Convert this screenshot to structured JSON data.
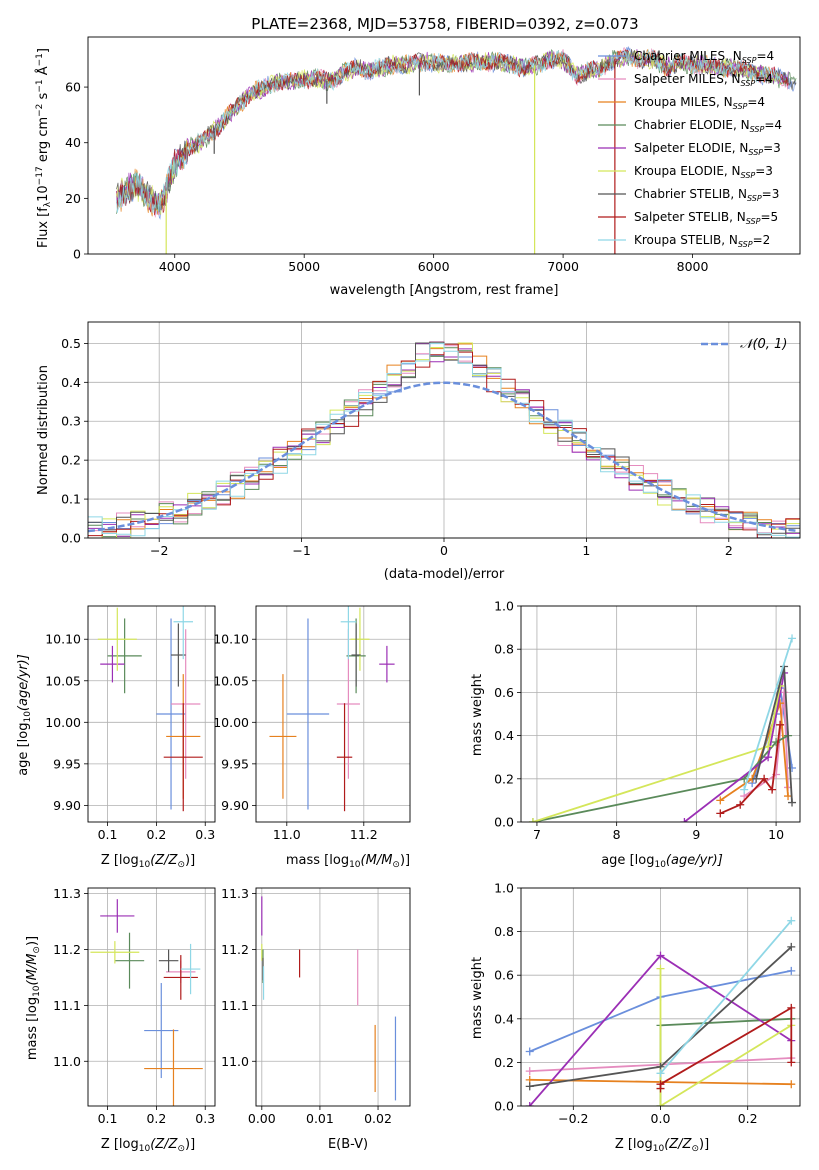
{
  "title": "PLATE=2368, MJD=53758, FIBERID=0392, z=0.073",
  "legend": [
    {
      "name": "Chabrier MILES, N$_{SSP}$=4",
      "label_main": "Chabrier MILES, N",
      "label_sub": "SSP",
      "label_tail": "=4",
      "color": "#6a8fdc"
    },
    {
      "name": "Salpeter MILES, N$_{SSP}$=4",
      "label_main": "Salpeter MILES, N",
      "label_sub": "SSP",
      "label_tail": "=4",
      "color": "#e58cbf"
    },
    {
      "name": "Kroupa MILES, N$_{SSP}$=4",
      "label_main": "Kroupa MILES, N",
      "label_sub": "SSP",
      "label_tail": "=4",
      "color": "#e6811f"
    },
    {
      "name": "Chabrier ELODIE, N$_{SSP}$=4",
      "label_main": "Chabrier ELODIE, N",
      "label_sub": "SSP",
      "label_tail": "=4",
      "color": "#5a8a5a"
    },
    {
      "name": "Salpeter ELODIE, N$_{SSP}$=3",
      "label_main": "Salpeter ELODIE, N",
      "label_sub": "SSP",
      "label_tail": "=3",
      "color": "#9b2fb5"
    },
    {
      "name": "Kroupa ELODIE, N$_{SSP}$=3",
      "label_main": "Kroupa ELODIE, N",
      "label_sub": "SSP",
      "label_tail": "=3",
      "color": "#d4e65a"
    },
    {
      "name": "Chabrier STELIB, N$_{SSP}$=3",
      "label_main": "Chabrier STELIB, N",
      "label_sub": "SSP",
      "label_tail": "=3",
      "color": "#555555"
    },
    {
      "name": "Salpeter STELIB, N$_{SSP}$=5",
      "label_main": "Salpeter STELIB, N",
      "label_sub": "SSP",
      "label_tail": "=5",
      "color": "#b01b1b"
    },
    {
      "name": "Kroupa STELIB, N$_{SSP}$=2",
      "label_main": "Kroupa STELIB, N",
      "label_sub": "SSP",
      "label_tail": "=2",
      "color": "#8fd7e6"
    }
  ],
  "chart_data": [
    {
      "id": "spectrum",
      "type": "line",
      "xlabel": "wavelength [Angstrom, rest frame]",
      "ylabel_main": "Flux [f",
      "ylabel_sub": "λ",
      "ylabel_rest": "10",
      "ylabel_sup": "−17",
      "ylabel_units": " erg cm",
      "ylabel_sup2": "−2",
      "ylabel_units2": " s",
      "ylabel_sup3": "−1",
      "ylabel_units3": " Å",
      "ylabel_sup4": "−1",
      "ylabel_end": "]",
      "xlim": [
        3330,
        8830
      ],
      "ylim": [
        0,
        78
      ],
      "xticks": [
        4000,
        5000,
        6000,
        7000,
        8000
      ],
      "yticks": [
        0,
        20,
        40,
        60
      ],
      "envelope": [
        [
          3550,
          19
        ],
        [
          3600,
          22
        ],
        [
          3700,
          25
        ],
        [
          3800,
          20
        ],
        [
          3900,
          18
        ],
        [
          4000,
          32
        ],
        [
          4100,
          38
        ],
        [
          4200,
          40
        ],
        [
          4300,
          44
        ],
        [
          4400,
          49
        ],
        [
          4500,
          54
        ],
        [
          4600,
          58
        ],
        [
          4700,
          60
        ],
        [
          4800,
          62
        ],
        [
          4900,
          62
        ],
        [
          5000,
          63
        ],
        [
          5100,
          63
        ],
        [
          5200,
          62
        ],
        [
          5300,
          65
        ],
        [
          5400,
          67
        ],
        [
          5500,
          66
        ],
        [
          5600,
          67
        ],
        [
          5700,
          68
        ],
        [
          5800,
          68
        ],
        [
          5900,
          69
        ],
        [
          6000,
          69
        ],
        [
          6100,
          68
        ],
        [
          6200,
          69
        ],
        [
          6300,
          69
        ],
        [
          6400,
          69
        ],
        [
          6500,
          69
        ],
        [
          6600,
          68
        ],
        [
          6700,
          67
        ],
        [
          6800,
          68
        ],
        [
          6900,
          70
        ],
        [
          7000,
          70
        ],
        [
          7100,
          64
        ],
        [
          7200,
          66
        ],
        [
          7300,
          67
        ],
        [
          7400,
          70
        ],
        [
          7500,
          71
        ],
        [
          7600,
          70
        ],
        [
          7700,
          70
        ],
        [
          7800,
          67
        ],
        [
          7900,
          69
        ],
        [
          8000,
          68
        ],
        [
          8100,
          68
        ],
        [
          8200,
          67
        ],
        [
          8300,
          67
        ],
        [
          8400,
          66
        ],
        [
          8500,
          65
        ],
        [
          8600,
          64
        ],
        [
          8700,
          63
        ],
        [
          8800,
          62
        ]
      ],
      "dips": [
        [
          3934,
          0,
          "#d4e65a"
        ],
        [
          6780,
          0,
          "#d4e65a"
        ],
        [
          7400,
          0,
          "#b01b1b"
        ],
        [
          5890,
          57,
          "#555555"
        ],
        [
          5175,
          54,
          "#555555"
        ],
        [
          4305,
          36,
          "#555555"
        ]
      ]
    },
    {
      "id": "residuals",
      "type": "histogram",
      "xlabel": "(data-model)/error",
      "ylabel": "Normed distribution",
      "xlim": [
        -2.5,
        2.5
      ],
      "ylim": [
        0,
        0.555
      ],
      "xticks": [
        -2,
        -1,
        0,
        1,
        2
      ],
      "yticks": [
        0.0,
        0.1,
        0.2,
        0.3,
        0.4,
        0.5
      ],
      "gauss_label": "𝒩(0, 1)",
      "bin_width": 0.1
    },
    {
      "id": "age_vs_z",
      "type": "scatter",
      "xlabel_main": "Z [log",
      "xlabel_sub": "10",
      "xlabel_rest": "(Z/Z",
      "xlabel_sun": "⊙",
      "xlabel_end": ")]",
      "ylabel_main": "age  [log",
      "ylabel_sub": "10",
      "ylabel_rest": "(age/yr)]",
      "xlim": [
        0.06,
        0.32
      ],
      "ylim": [
        9.88,
        10.14
      ],
      "xticks": [
        0.1,
        0.2,
        0.3
      ],
      "yticks": [
        9.9,
        9.95,
        10.0,
        10.05,
        10.1
      ],
      "points": [
        {
          "s": 0,
          "x": 0.23,
          "y": 10.01,
          "xe": 0.03,
          "ye": 0.115
        },
        {
          "s": 1,
          "x": 0.26,
          "y": 10.022,
          "xe": 0.03,
          "ye": 0.09
        },
        {
          "s": 2,
          "x": 0.255,
          "y": 9.983,
          "xe": 0.035,
          "ye": 0.075
        },
        {
          "s": 3,
          "x": 0.135,
          "y": 10.08,
          "xe": 0.035,
          "ye": 0.045
        },
        {
          "s": 4,
          "x": 0.11,
          "y": 10.07,
          "xe": 0.025,
          "ye": 0.022
        },
        {
          "s": 5,
          "x": 0.12,
          "y": 10.1,
          "xe": 0.04,
          "ye": 0.038
        },
        {
          "s": 6,
          "x": 0.245,
          "y": 10.081,
          "xe": 0.015,
          "ye": 0.038
        },
        {
          "s": 7,
          "x": 0.255,
          "y": 9.958,
          "xe": 0.04,
          "ye": 0.065
        },
        {
          "s": 8,
          "x": 0.255,
          "y": 10.121,
          "xe": 0.02,
          "ye": 0.045
        }
      ]
    },
    {
      "id": "age_vs_mass",
      "type": "scatter",
      "xlabel_main": "mass [log",
      "xlabel_sub": "10",
      "xlabel_rest": "(M/M",
      "xlabel_sun": "⊙",
      "xlabel_end": ")]",
      "xlim": [
        10.92,
        11.32
      ],
      "ylim": [
        9.88,
        10.14
      ],
      "xticks": [
        11.0,
        11.2
      ],
      "yticks": [
        9.9,
        9.95,
        10.0,
        10.05,
        10.1
      ],
      "points": [
        {
          "s": 0,
          "x": 11.055,
          "y": 10.01,
          "xe": 0.055,
          "ye": 0.115
        },
        {
          "s": 1,
          "x": 11.16,
          "y": 10.022,
          "xe": 0.03,
          "ye": 0.09
        },
        {
          "s": 2,
          "x": 10.99,
          "y": 9.983,
          "xe": 0.035,
          "ye": 0.075
        },
        {
          "s": 3,
          "x": 11.18,
          "y": 10.08,
          "xe": 0.025,
          "ye": 0.045
        },
        {
          "s": 4,
          "x": 11.26,
          "y": 10.07,
          "xe": 0.02,
          "ye": 0.022
        },
        {
          "s": 5,
          "x": 11.19,
          "y": 10.1,
          "xe": 0.025,
          "ye": 0.038
        },
        {
          "s": 6,
          "x": 11.18,
          "y": 10.081,
          "xe": 0.012,
          "ye": 0.038
        },
        {
          "s": 7,
          "x": 11.15,
          "y": 9.958,
          "xe": 0.02,
          "ye": 0.065
        },
        {
          "s": 8,
          "x": 11.16,
          "y": 10.121,
          "xe": 0.02,
          "ye": 0.045
        }
      ]
    },
    {
      "id": "weight_vs_age",
      "type": "line",
      "xlabel_main": "age  [log",
      "xlabel_sub": "10",
      "xlabel_rest": "(age/yr)]",
      "ylabel": "mass weight",
      "xlim": [
        6.8,
        10.3
      ],
      "ylim": [
        0,
        1
      ],
      "xticks": [
        7,
        8,
        9,
        10
      ],
      "yticks": [
        0.0,
        0.2,
        0.4,
        0.6,
        0.8,
        1.0
      ],
      "series": [
        {
          "s": 0,
          "x": [
            9.7,
            10.0,
            10.05,
            10.2
          ],
          "y": [
            0.18,
            0.5,
            0.62,
            0.25
          ]
        },
        {
          "s": 1,
          "x": [
            9.6,
            10.0,
            10.1,
            10.15
          ],
          "y": [
            0.12,
            0.22,
            0.6,
            0.16
          ]
        },
        {
          "s": 2,
          "x": [
            9.3,
            9.7,
            10.05,
            10.15
          ],
          "y": [
            0.1,
            0.2,
            0.55,
            0.12
          ]
        },
        {
          "s": 3,
          "x": [
            6.95,
            9.6,
            10.0,
            10.15
          ],
          "y": [
            0.0,
            0.2,
            0.37,
            0.4
          ]
        },
        {
          "s": 4,
          "x": [
            8.85,
            9.9,
            10.1
          ],
          "y": [
            0.0,
            0.3,
            0.69
          ]
        },
        {
          "s": 5,
          "x": [
            6.95,
            9.9,
            10.05
          ],
          "y": [
            0.0,
            0.35,
            0.63
          ]
        },
        {
          "s": 6,
          "x": [
            9.75,
            10.1,
            10.2
          ],
          "y": [
            0.2,
            0.72,
            0.09
          ]
        },
        {
          "s": 7,
          "x": [
            9.3,
            9.55,
            9.85,
            9.95,
            10.05
          ],
          "y": [
            0.04,
            0.08,
            0.2,
            0.15,
            0.45
          ]
        },
        {
          "s": 8,
          "x": [
            9.6,
            10.2
          ],
          "y": [
            0.15,
            0.85
          ]
        }
      ]
    },
    {
      "id": "mass_vs_z",
      "type": "scatter",
      "xlabel_main": "Z [log",
      "xlabel_sub": "10",
      "xlabel_rest": "(Z/Z",
      "xlabel_sun": "⊙",
      "xlabel_end": ")]",
      "ylabel_main": "mass [log",
      "ylabel_sub": "10",
      "ylabel_rest": "(M/M",
      "ylabel_sun": "⊙",
      "ylabel_end": ")]",
      "xlim": [
        0.06,
        0.32
      ],
      "ylim": [
        10.92,
        11.31
      ],
      "xticks": [
        0.1,
        0.2,
        0.3
      ],
      "yticks": [
        11.0,
        11.1,
        11.2,
        11.3
      ],
      "points": [
        {
          "s": 0,
          "x": 0.21,
          "y": 11.055,
          "xe": 0.035,
          "ye": 0.085
        },
        {
          "s": 1,
          "x": 0.25,
          "y": 11.16,
          "xe": 0.03,
          "ye": 0.02
        },
        {
          "s": 2,
          "x": 0.235,
          "y": 10.987,
          "xe": 0.06,
          "ye": 0.07
        },
        {
          "s": 3,
          "x": 0.145,
          "y": 11.18,
          "xe": 0.03,
          "ye": 0.05
        },
        {
          "s": 4,
          "x": 0.12,
          "y": 11.26,
          "xe": 0.035,
          "ye": 0.03
        },
        {
          "s": 5,
          "x": 0.115,
          "y": 11.195,
          "xe": 0.05,
          "ye": 0.02
        },
        {
          "s": 6,
          "x": 0.225,
          "y": 11.18,
          "xe": 0.02,
          "ye": 0.02
        },
        {
          "s": 7,
          "x": 0.25,
          "y": 11.15,
          "xe": 0.035,
          "ye": 0.04
        },
        {
          "s": 8,
          "x": 0.27,
          "y": 11.165,
          "xe": 0.02,
          "ye": 0.045
        }
      ]
    },
    {
      "id": "mass_vs_ebv",
      "type": "scatter",
      "xlabel": "E(B-V)",
      "xlim": [
        -0.001,
        0.0255
      ],
      "ylim": [
        10.92,
        11.31
      ],
      "xticks": [
        0.0,
        0.01,
        0.02
      ],
      "yticks": [
        11.0,
        11.1,
        11.2,
        11.3
      ],
      "points": [
        {
          "s": 0,
          "x": 0.023,
          "y": 11.005,
          "xe": 0,
          "ye": 0.075
        },
        {
          "s": 1,
          "x": 0.0165,
          "y": 11.15,
          "xe": 0,
          "ye": 0.05
        },
        {
          "s": 2,
          "x": 0.0195,
          "y": 11.005,
          "xe": 0,
          "ye": 0.06
        },
        {
          "s": 3,
          "x": 0.0002,
          "y": 11.17,
          "xe": 0,
          "ye": 0.03
        },
        {
          "s": 4,
          "x": 0.0,
          "y": 11.26,
          "xe": 0,
          "ye": 0.035
        },
        {
          "s": 5,
          "x": 0.0,
          "y": 11.195,
          "xe": 0,
          "ye": 0.015
        },
        {
          "s": 6,
          "x": 0.0002,
          "y": 11.165,
          "xe": 0,
          "ye": 0.02
        },
        {
          "s": 7,
          "x": 0.0065,
          "y": 11.175,
          "xe": 0,
          "ye": 0.025
        },
        {
          "s": 8,
          "x": 0.0003,
          "y": 11.14,
          "xe": 0,
          "ye": 0.03
        }
      ]
    },
    {
      "id": "weight_vs_z",
      "type": "line",
      "xlabel_main": "Z [log",
      "xlabel_sub": "10",
      "xlabel_rest": "(Z/Z",
      "xlabel_sun": "⊙",
      "xlabel_end": ")]",
      "ylabel": "mass weight",
      "xlim": [
        -0.32,
        0.32
      ],
      "ylim": [
        0,
        1
      ],
      "xticks": [
        -0.2,
        0.0,
        0.2
      ],
      "yticks": [
        0.0,
        0.2,
        0.4,
        0.6,
        0.8,
        1.0
      ],
      "series": [
        {
          "s": 0,
          "x": [
            -0.3,
            0.0,
            0.3
          ],
          "y": [
            0.25,
            0.5,
            0.62
          ]
        },
        {
          "s": 1,
          "x": [
            -0.3,
            0.0,
            0.3
          ],
          "y": [
            0.16,
            0.19,
            0.22
          ]
        },
        {
          "s": 2,
          "x": [
            -0.3,
            0.0,
            0.3
          ],
          "y": [
            0.12,
            0.11,
            0.1
          ]
        },
        {
          "s": 3,
          "x": [
            0.0,
            0.0,
            0.3
          ],
          "y": [
            0.0,
            0.37,
            0.4
          ]
        },
        {
          "s": 4,
          "x": [
            -0.3,
            0.0,
            0.3
          ],
          "y": [
            0.0,
            0.69,
            0.3
          ]
        },
        {
          "s": 5,
          "x": [
            0.0,
            0.0,
            0.3
          ],
          "y": [
            0.63,
            0.0,
            0.37
          ]
        },
        {
          "s": 6,
          "x": [
            -0.3,
            0.0,
            0.3
          ],
          "y": [
            0.09,
            0.18,
            0.73
          ]
        },
        {
          "s": 7,
          "x": [
            0.0,
            0.0,
            0.3,
            0.3
          ],
          "y": [
            0.08,
            0.1,
            0.45,
            0.2
          ]
        },
        {
          "s": 8,
          "x": [
            0.0,
            0.3
          ],
          "y": [
            0.15,
            0.85
          ]
        }
      ]
    }
  ]
}
